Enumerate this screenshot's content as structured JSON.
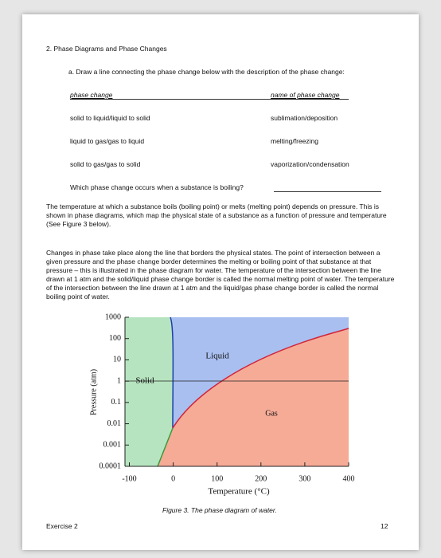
{
  "header": {
    "title": "2. Phase Diagrams and Phase Changes"
  },
  "question_a": {
    "prompt": "a.  Draw a line connecting the phase change below with the description of the phase change:",
    "left_header": "phase change",
    "right_header": "name of phase change",
    "rows": [
      [
        "solid to liquid/liquid to solid",
        "sublimation/deposition"
      ],
      [
        "liquid to gas/gas to liquid",
        "melting/freezing"
      ],
      [
        "solid to gas/gas to solid",
        "vaporization/condensation"
      ]
    ],
    "question": "Which phase change occurs when a substance is boiling?"
  },
  "paragraphs": [
    "The temperature at which a substance boils (boiling point) or melts (melting point) depends on pressure. This is shown in phase diagrams, which map the physical state of a substance as a function of pressure and temperature (See Figure 3 below).",
    "Changes in phase take place along the line that borders the physical states. The point of intersection between a given pressure and the phase change border determines the melting or boiling point of that substance at that pressure – this is illustrated in the phase diagram for water. The temperature of the intersection between the line drawn at 1 atm and the solid/liquid phase change border is called the normal melting point of water. The temperature of the intersection between the line drawn at 1 atm and the liquid/gas phase change border is called the normal boiling point of water."
  ],
  "figure": {
    "x_label": "Temperature (°C)",
    "y_label": "Pressure (atm)",
    "xlim": [
      -110,
      400
    ],
    "xticks": [
      -100,
      0,
      100,
      200,
      300,
      400
    ],
    "ylim": [
      0.0001,
      1000
    ],
    "yticks": [
      1000,
      100,
      10,
      1,
      0.1,
      0.01,
      0.001,
      0.0001
    ],
    "log_y": true,
    "regions": [
      "Liquid",
      "Solid",
      "Gas"
    ],
    "caption": "Figure 3.  The phase diagram of water."
  },
  "footer": {
    "left": "Exercise 2",
    "right": "12"
  }
}
